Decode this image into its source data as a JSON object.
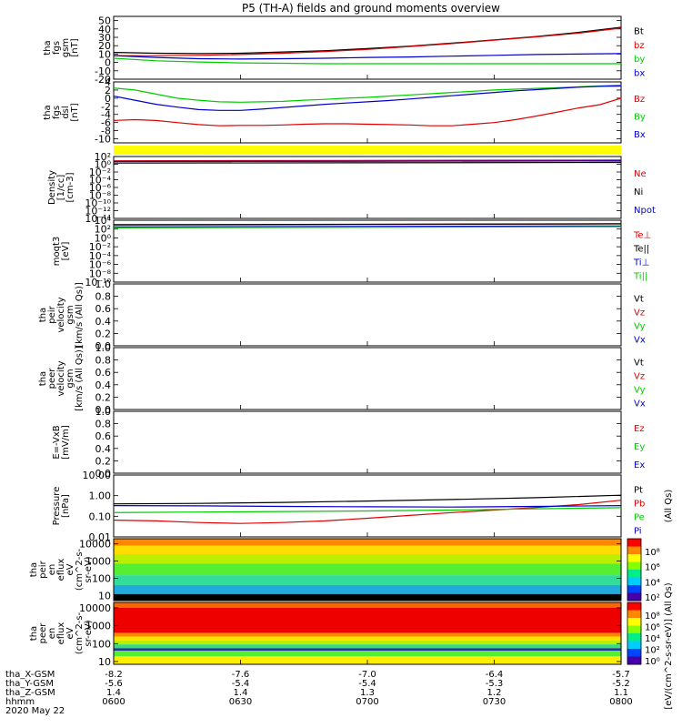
{
  "title": "P5 (TH-A) fields and ground moments overview",
  "colors": {
    "black": "#000000",
    "red": "#e00000",
    "green": "#00cc00",
    "blue": "#0000cc",
    "yellow": "#ffff00"
  },
  "chart_data": [
    {
      "type": "line",
      "id": "fgs_gsm",
      "ylabel_lines": [
        "tha",
        "fgs",
        "gsm",
        "[nT]"
      ],
      "ylim": [
        -20,
        55
      ],
      "ticks": [
        {
          "v": 50,
          "t": "50"
        },
        {
          "v": 40,
          "t": "40"
        },
        {
          "v": 30,
          "t": "30"
        },
        {
          "v": 20,
          "t": "20"
        },
        {
          "v": 10,
          "t": "10"
        },
        {
          "v": 0,
          "t": "0"
        },
        {
          "v": -10,
          "t": "-10"
        },
        {
          "v": -20,
          "t": "-20"
        }
      ],
      "series": [
        {
          "name": "Bt",
          "color": "black",
          "x": [
            0,
            10,
            20,
            30,
            40,
            50,
            60,
            70,
            80,
            90,
            100,
            110,
            120
          ],
          "y": [
            12,
            11,
            10.5,
            11,
            12.5,
            14,
            16.5,
            19.5,
            23,
            27,
            31,
            36,
            42
          ]
        },
        {
          "name": "bz",
          "color": "red",
          "x": [
            0,
            10,
            20,
            30,
            40,
            50,
            60,
            70,
            80,
            90,
            100,
            110,
            120
          ],
          "y": [
            8,
            8,
            8.5,
            9.5,
            11,
            13,
            15.5,
            19,
            22.5,
            26.5,
            30.5,
            35,
            41
          ]
        },
        {
          "name": "by",
          "color": "green",
          "x": [
            0,
            10,
            20,
            30,
            40,
            50,
            60,
            70,
            80,
            90,
            100,
            110,
            120
          ],
          "y": [
            5,
            2,
            0.5,
            -0.5,
            -1,
            -1.5,
            -1.5,
            -1.5,
            -1.5,
            -1.5,
            -1.5,
            -1.5,
            -1.5
          ]
        },
        {
          "name": "bx",
          "color": "blue",
          "x": [
            0,
            10,
            20,
            30,
            40,
            50,
            60,
            70,
            80,
            90,
            100,
            110,
            120
          ],
          "y": [
            8,
            6,
            4.5,
            4,
            4.5,
            5,
            6,
            6.5,
            7.5,
            8.5,
            9.5,
            10,
            10.5
          ]
        }
      ]
    },
    {
      "type": "line",
      "id": "fgs_dsl",
      "ylabel_lines": [
        "tha",
        "fgs",
        "dsl",
        "[nT]"
      ],
      "ylim": [
        -11,
        4
      ],
      "ticks": [
        {
          "v": 4,
          "t": "4"
        },
        {
          "v": 2,
          "t": "2"
        },
        {
          "v": 0,
          "t": "0"
        },
        {
          "v": -2,
          "t": "-2"
        },
        {
          "v": -4,
          "t": "-4"
        },
        {
          "v": -6,
          "t": "-6"
        },
        {
          "v": -8,
          "t": "-8"
        },
        {
          "v": -10,
          "t": "-10"
        }
      ],
      "series": [
        {
          "name": "Bz",
          "color": "red",
          "x": [
            0,
            5,
            10,
            15,
            20,
            25,
            30,
            35,
            40,
            45,
            50,
            55,
            60,
            65,
            70,
            75,
            80,
            85,
            90,
            95,
            100,
            105,
            110,
            115,
            120
          ],
          "y": [
            -5.5,
            -5.3,
            -5.5,
            -6,
            -6.5,
            -6.8,
            -6.7,
            -6.7,
            -6.6,
            -6.4,
            -6.3,
            -6.3,
            -6.4,
            -6.5,
            -6.6,
            -6.8,
            -6.8,
            -6.4,
            -6,
            -5.3,
            -4.4,
            -3.4,
            -2.4,
            -1.6,
            0
          ]
        },
        {
          "name": "By",
          "color": "green",
          "x": [
            0,
            5,
            10,
            15,
            20,
            25,
            30,
            35,
            40,
            45,
            50,
            55,
            60,
            65,
            70,
            75,
            80,
            85,
            90,
            95,
            100,
            105,
            110,
            115,
            120
          ],
          "y": [
            2.5,
            2,
            1,
            0,
            -0.5,
            -0.9,
            -1,
            -0.9,
            -0.8,
            -0.5,
            -0.3,
            0,
            0.2,
            0.5,
            0.8,
            1.1,
            1.4,
            1.7,
            2,
            2.2,
            2.4,
            2.6,
            2.8,
            3,
            3.2
          ]
        },
        {
          "name": "Bx",
          "color": "blue",
          "x": [
            0,
            5,
            10,
            15,
            20,
            25,
            30,
            35,
            40,
            45,
            50,
            55,
            60,
            65,
            70,
            75,
            80,
            85,
            90,
            95,
            100,
            105,
            110,
            115,
            120
          ],
          "y": [
            0.5,
            -0.5,
            -1.5,
            -2.2,
            -2.8,
            -3,
            -3,
            -2.7,
            -2.3,
            -1.9,
            -1.5,
            -1.2,
            -0.9,
            -0.6,
            -0.2,
            0.2,
            0.6,
            1,
            1.4,
            1.8,
            2.1,
            2.4,
            2.7,
            2.9,
            3
          ]
        }
      ]
    },
    {
      "type": "flag",
      "id": "flag_bar",
      "color": "yellow"
    },
    {
      "type": "line",
      "id": "density",
      "log": true,
      "ylabel_lines": [
        "Density",
        "[1/cc]",
        "[cm-3]"
      ],
      "ylim": [
        1e-14,
        100
      ],
      "ticks": [
        {
          "v": 100,
          "t": "10²"
        },
        {
          "v": 1,
          "t": "10⁰"
        },
        {
          "v": 0.01,
          "t": "10⁻²"
        },
        {
          "v": 0.0001,
          "t": "10⁻⁴"
        },
        {
          "v": 1e-06,
          "t": "10⁻⁶"
        },
        {
          "v": 1e-08,
          "t": "10⁻⁸"
        },
        {
          "v": 1e-10,
          "t": "10⁻¹⁰"
        },
        {
          "v": 1e-12,
          "t": "10⁻¹²"
        },
        {
          "v": 1e-14,
          "t": "10⁻¹⁴"
        }
      ],
      "series": [
        {
          "name": "Ne",
          "color": "red",
          "x": [
            0,
            120
          ],
          "y": [
            8,
            12
          ]
        },
        {
          "name": "Ni",
          "color": "black",
          "x": [
            0,
            120
          ],
          "y": [
            2,
            3
          ]
        },
        {
          "name": "Npot",
          "color": "blue",
          "x": [
            0,
            120
          ],
          "y": [
            5,
            7
          ]
        }
      ]
    },
    {
      "type": "line",
      "id": "temps",
      "log": true,
      "ylabel_lines": [
        "moqt3",
        "[eV]"
      ],
      "ylim": [
        1e-10,
        10000.0
      ],
      "ticks": [
        {
          "v": 10000.0,
          "t": "10⁴"
        },
        {
          "v": 100,
          "t": "10²"
        },
        {
          "v": 1,
          "t": "10⁰"
        },
        {
          "v": 0.01,
          "t": "10⁻²"
        },
        {
          "v": 0.0001,
          "t": "10⁻⁴"
        },
        {
          "v": 1e-06,
          "t": "10⁻⁶"
        },
        {
          "v": 1e-08,
          "t": "10⁻⁸"
        },
        {
          "v": 1e-10,
          "t": "10⁻¹⁰"
        }
      ],
      "series": [
        {
          "name": "Te⊥",
          "color": "red",
          "x": [
            0,
            120
          ],
          "y": [
            800,
            1500
          ]
        },
        {
          "name": "Te||",
          "color": "black",
          "x": [
            0,
            120
          ],
          "y": [
            1000,
            1600
          ]
        },
        {
          "name": "Ti⊥",
          "color": "blue",
          "x": [
            0,
            120
          ],
          "y": [
            300,
            500
          ]
        },
        {
          "name": "Ti||",
          "color": "green",
          "x": [
            0,
            120
          ],
          "y": [
            200,
            350
          ]
        }
      ]
    },
    {
      "type": "line",
      "id": "peir_vel",
      "ylabel_lines": [
        "tha",
        "peir",
        "velocity",
        "gsm",
        "[km/s (All Qs)]"
      ],
      "ylim": [
        0,
        1
      ],
      "ticks": [
        {
          "v": 1,
          "t": "1.0"
        },
        {
          "v": 0.8,
          "t": "0.8"
        },
        {
          "v": 0.6,
          "t": "0.6"
        },
        {
          "v": 0.4,
          "t": "0.4"
        },
        {
          "v": 0.2,
          "t": "0.2"
        },
        {
          "v": 0,
          "t": "0.0"
        }
      ],
      "series": [
        {
          "name": "Vt",
          "color": "black",
          "x": [],
          "y": []
        },
        {
          "name": "Vz",
          "color": "red",
          "x": [],
          "y": []
        },
        {
          "name": "Vy",
          "color": "green",
          "x": [],
          "y": []
        },
        {
          "name": "Vx",
          "color": "blue",
          "x": [],
          "y": []
        }
      ]
    },
    {
      "type": "line",
      "id": "peer_vel",
      "ylabel_lines": [
        "tha",
        "peer",
        "velocity",
        "gsm",
        "[km/s (All Qs)]"
      ],
      "ylim": [
        0,
        1
      ],
      "ticks": [
        {
          "v": 1,
          "t": "1.0"
        },
        {
          "v": 0.8,
          "t": "0.8"
        },
        {
          "v": 0.6,
          "t": "0.6"
        },
        {
          "v": 0.4,
          "t": "0.4"
        },
        {
          "v": 0.2,
          "t": "0.2"
        },
        {
          "v": 0,
          "t": "0.0"
        }
      ],
      "series": [
        {
          "name": "Vt",
          "color": "black",
          "x": [],
          "y": []
        },
        {
          "name": "Vz",
          "color": "red",
          "x": [],
          "y": []
        },
        {
          "name": "Vy",
          "color": "green",
          "x": [],
          "y": []
        },
        {
          "name": "Vx",
          "color": "blue",
          "x": [],
          "y": []
        }
      ]
    },
    {
      "type": "line",
      "id": "efield",
      "ylabel_lines": [
        "E=-VxB",
        "[mV/m]"
      ],
      "ylim": [
        0,
        1
      ],
      "ticks": [
        {
          "v": 1,
          "t": "1.0"
        },
        {
          "v": 0.8,
          "t": "0.8"
        },
        {
          "v": 0.6,
          "t": "0.6"
        },
        {
          "v": 0.4,
          "t": "0.4"
        },
        {
          "v": 0.2,
          "t": "0.2"
        },
        {
          "v": 0,
          "t": "0.0"
        }
      ],
      "series": [
        {
          "name": "Ez",
          "color": "red",
          "x": [],
          "y": []
        },
        {
          "name": "Ey",
          "color": "green",
          "x": [],
          "y": []
        },
        {
          "name": "Ex",
          "color": "blue",
          "x": [],
          "y": []
        }
      ]
    },
    {
      "type": "line",
      "id": "pressure",
      "log": true,
      "ylabel_lines": [
        "Pressure",
        "[nPa]"
      ],
      "right_label": "(All Qs)",
      "ylim": [
        0.01,
        10
      ],
      "ticks": [
        {
          "v": 10,
          "t": "10.00"
        },
        {
          "v": 1,
          "t": "1.00"
        },
        {
          "v": 0.1,
          "t": "0.10"
        },
        {
          "v": 0.01,
          "t": "0.01"
        }
      ],
      "series": [
        {
          "name": "Pt",
          "color": "black",
          "x": [
            0,
            20,
            40,
            60,
            80,
            100,
            120
          ],
          "y": [
            0.4,
            0.42,
            0.47,
            0.55,
            0.65,
            0.8,
            1.05
          ]
        },
        {
          "name": "Pb",
          "color": "red",
          "x": [
            0,
            10,
            20,
            30,
            40,
            50,
            60,
            70,
            80,
            90,
            100,
            110,
            120
          ],
          "y": [
            0.065,
            0.06,
            0.05,
            0.045,
            0.05,
            0.06,
            0.08,
            0.11,
            0.15,
            0.2,
            0.27,
            0.37,
            0.6
          ]
        },
        {
          "name": "Pe",
          "color": "green",
          "x": [
            0,
            20,
            40,
            60,
            80,
            100,
            120
          ],
          "y": [
            0.15,
            0.16,
            0.17,
            0.18,
            0.2,
            0.23,
            0.26
          ]
        },
        {
          "name": "Pi",
          "color": "blue",
          "x": [
            0,
            20,
            40,
            60,
            80,
            100,
            120
          ],
          "y": [
            0.33,
            0.32,
            0.3,
            0.29,
            0.28,
            0.3,
            0.33
          ]
        }
      ]
    },
    {
      "type": "heatmap",
      "id": "peir_eflux",
      "ylabel_lines": [
        "tha",
        "peir",
        "en",
        "eflux",
        "eV",
        "(cm^2-s-",
        "sr-eV)"
      ],
      "ylim": [
        5,
        20000
      ],
      "log": true,
      "ticks": [
        {
          "v": 10000,
          "t": "10000"
        },
        {
          "v": 1000,
          "t": "1000"
        },
        {
          "v": 100,
          "t": "100"
        },
        {
          "v": 10,
          "t": "10"
        }
      ],
      "bands": [
        {
          "lo": 8000,
          "hi": 20000,
          "color": "#ff8800"
        },
        {
          "lo": 2500,
          "hi": 8000,
          "color": "#ffdd00"
        },
        {
          "lo": 700,
          "hi": 2500,
          "color": "#bbee00"
        },
        {
          "lo": 150,
          "hi": 700,
          "color": "#55ee33"
        },
        {
          "lo": 40,
          "hi": 150,
          "color": "#33dd99"
        },
        {
          "lo": 12,
          "hi": 40,
          "color": "#22aadd"
        },
        {
          "lo": 5,
          "hi": 12,
          "color": "#000000"
        }
      ],
      "colorbar_ticks": [
        "10⁸",
        "10⁶",
        "10⁴",
        "10²"
      ]
    },
    {
      "type": "heatmap",
      "id": "peer_eflux",
      "ylabel_lines": [
        "tha",
        "peer",
        "en",
        "eflux",
        "eV",
        "(cm^2-s-",
        "sr-eV)"
      ],
      "ylim": [
        7,
        20000
      ],
      "log": true,
      "ticks": [
        {
          "v": 10000,
          "t": "10000"
        },
        {
          "v": 1000,
          "t": "1000"
        },
        {
          "v": 100,
          "t": "100"
        },
        {
          "v": 10,
          "t": "10"
        }
      ],
      "bands": [
        {
          "lo": 10000,
          "hi": 20000,
          "color": "#ff6600"
        },
        {
          "lo": 400,
          "hi": 10000,
          "color": "#ee0000"
        },
        {
          "lo": 250,
          "hi": 400,
          "color": "#ff8800"
        },
        {
          "lo": 150,
          "hi": 250,
          "color": "#ffdd00"
        },
        {
          "lo": 90,
          "hi": 150,
          "color": "#bbee00"
        },
        {
          "lo": 55,
          "hi": 90,
          "color": "#33dd77"
        },
        {
          "lo": 40,
          "hi": 55,
          "color": "#223399"
        },
        {
          "lo": 20,
          "hi": 40,
          "color": "#55ee33"
        },
        {
          "lo": 7,
          "hi": 20,
          "color": "#ffee00"
        }
      ],
      "colorbar_ticks": [
        "10⁸",
        "10⁶",
        "10⁴",
        "10²",
        "10⁰"
      ]
    }
  ],
  "colorbar_label": "[eV/(cm^2-s-sr-eV)] (All Qs)",
  "x_axis": {
    "range_minutes": [
      0,
      120
    ],
    "tick_minutes": [
      0,
      30,
      60,
      90,
      120
    ],
    "rows": [
      {
        "label": "tha_X-GSM",
        "values": [
          "-8.2",
          "-7.6",
          "-7.0",
          "-6.4",
          "-5.7"
        ]
      },
      {
        "label": "tha_Y-GSM",
        "values": [
          "-5.6",
          "-5.4",
          "-5.4",
          "-5.3",
          "-5.2"
        ]
      },
      {
        "label": "tha_Z-GSM",
        "values": [
          "1.4",
          "1.4",
          "1.3",
          "1.2",
          "1.1"
        ]
      },
      {
        "label": "hhmm",
        "values": [
          "0600",
          "0630",
          "0700",
          "0730",
          "0800"
        ]
      }
    ],
    "date": "2020 May 22"
  }
}
